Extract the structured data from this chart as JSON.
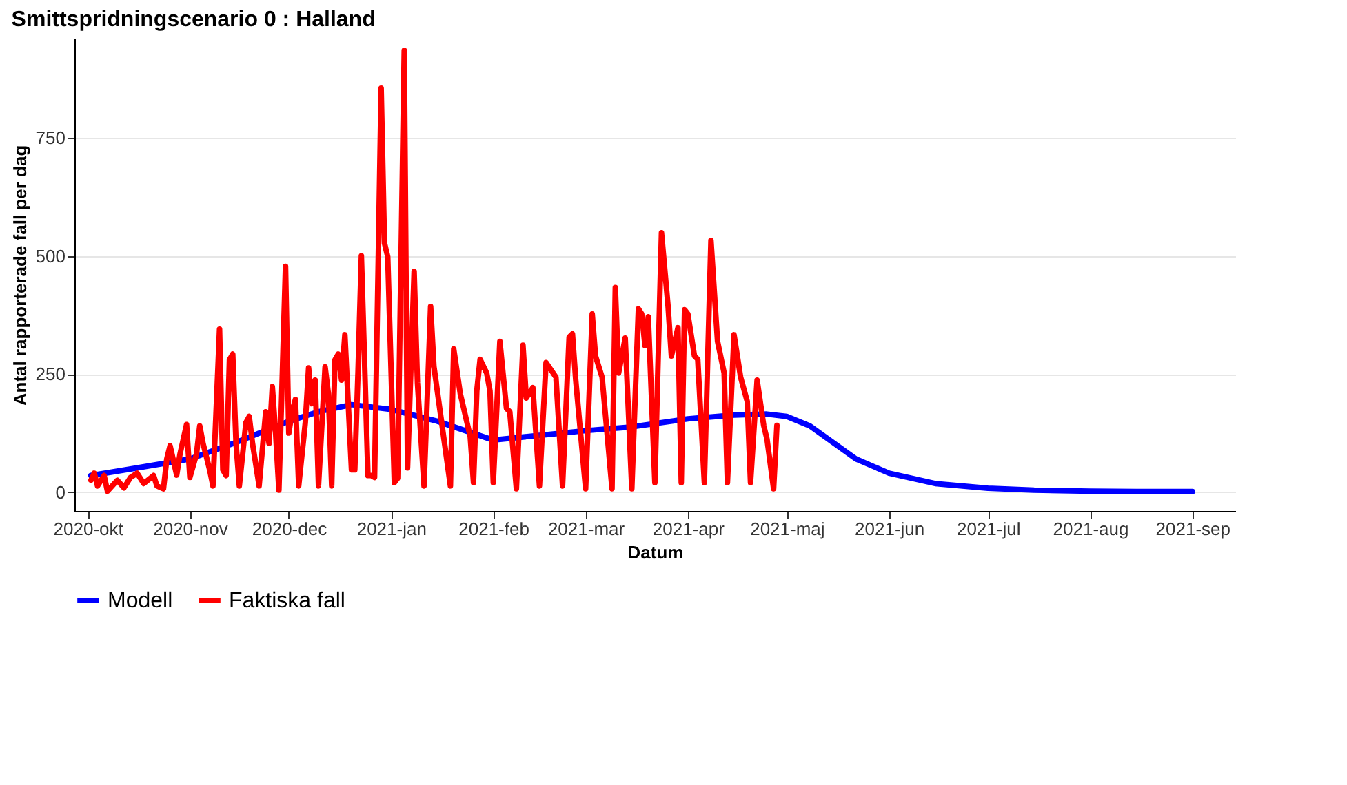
{
  "chart_data": {
    "type": "line",
    "title": "Smittspridningscenario  0 :  Halland",
    "xlabel": "Datum",
    "ylabel": "Antal rapporterade fall per dag",
    "xlim": [
      "2020-09-27",
      "2021-09-14"
    ],
    "ylim": [
      -40,
      960
    ],
    "yticks": [
      0,
      250,
      500,
      750
    ],
    "xticks": [
      {
        "value": "2020-10-01",
        "label": "2020-okt"
      },
      {
        "value": "2020-11-01",
        "label": "2020-nov"
      },
      {
        "value": "2020-12-01",
        "label": "2020-dec"
      },
      {
        "value": "2021-01-01",
        "label": "2021-jan"
      },
      {
        "value": "2021-02-01",
        "label": "2021-feb"
      },
      {
        "value": "2021-03-01",
        "label": "2021-mar"
      },
      {
        "value": "2021-04-01",
        "label": "2021-apr"
      },
      {
        "value": "2021-05-01",
        "label": "2021-maj"
      },
      {
        "value": "2021-06-01",
        "label": "2021-jun"
      },
      {
        "value": "2021-07-01",
        "label": "2021-jul"
      },
      {
        "value": "2021-08-01",
        "label": "2021-aug"
      },
      {
        "value": "2021-09-01",
        "label": "2021-sep"
      }
    ],
    "grid": "y",
    "legend": "bottom",
    "line_style": "solid",
    "series": [
      {
        "name": "Modell",
        "color": "#0000ff",
        "x": [
          "2020-10-02",
          "2020-10-15",
          "2020-11-01",
          "2020-11-15",
          "2020-12-01",
          "2020-12-10",
          "2020-12-20",
          "2021-01-01",
          "2021-01-15",
          "2021-02-01",
          "2021-02-15",
          "2021-03-01",
          "2021-03-15",
          "2021-04-01",
          "2021-04-15",
          "2021-04-25",
          "2021-05-01",
          "2021-05-08",
          "2021-05-15",
          "2021-05-22",
          "2021-06-01",
          "2021-06-15",
          "2021-07-01",
          "2021-07-15",
          "2021-08-01",
          "2021-08-15",
          "2021-09-01"
        ],
        "values": [
          35,
          50,
          70,
          105,
          150,
          170,
          185,
          175,
          150,
          110,
          120,
          130,
          138,
          155,
          163,
          165,
          160,
          140,
          105,
          70,
          40,
          18,
          8,
          4,
          2,
          1,
          1
        ]
      },
      {
        "name": "Faktiska fall",
        "color": "#ff0000",
        "x": [
          "2020-10-02",
          "2020-10-03",
          "2020-10-04",
          "2020-10-06",
          "2020-10-07",
          "2020-10-10",
          "2020-10-12",
          "2020-10-14",
          "2020-10-16",
          "2020-10-18",
          "2020-10-21",
          "2020-10-22",
          "2020-10-24",
          "2020-10-25",
          "2020-10-26",
          "2020-10-28",
          "2020-10-29",
          "2020-10-31",
          "2020-11-01",
          "2020-11-03",
          "2020-11-04",
          "2020-11-05",
          "2020-11-07",
          "2020-11-08",
          "2020-11-10",
          "2020-11-11",
          "2020-11-12",
          "2020-11-13",
          "2020-11-14",
          "2020-11-15",
          "2020-11-16",
          "2020-11-18",
          "2020-11-19",
          "2020-11-20",
          "2020-11-22",
          "2020-11-24",
          "2020-11-25",
          "2020-11-26",
          "2020-11-27",
          "2020-11-28",
          "2020-11-30",
          "2020-12-01",
          "2020-12-02",
          "2020-12-03",
          "2020-12-04",
          "2020-12-06",
          "2020-12-07",
          "2020-12-08",
          "2020-12-09",
          "2020-12-10",
          "2020-12-12",
          "2020-12-13",
          "2020-12-14",
          "2020-12-15",
          "2020-12-16",
          "2020-12-17",
          "2020-12-18",
          "2020-12-20",
          "2020-12-21",
          "2020-12-22",
          "2020-12-23",
          "2020-12-25",
          "2020-12-26",
          "2020-12-27",
          "2020-12-29",
          "2020-12-30",
          "2020-12-31",
          "2021-01-02",
          "2021-01-03",
          "2021-01-05",
          "2021-01-06",
          "2021-01-08",
          "2021-01-09",
          "2021-01-11",
          "2021-01-13",
          "2021-01-14",
          "2021-01-19",
          "2021-01-20",
          "2021-01-22",
          "2021-01-25",
          "2021-01-26",
          "2021-01-27",
          "2021-01-28",
          "2021-01-30",
          "2021-01-31",
          "2021-02-01",
          "2021-02-03",
          "2021-02-05",
          "2021-02-06",
          "2021-02-08",
          "2021-02-10",
          "2021-02-11",
          "2021-02-13",
          "2021-02-15",
          "2021-02-17",
          "2021-02-20",
          "2021-02-22",
          "2021-02-24",
          "2021-02-25",
          "2021-02-26",
          "2021-03-01",
          "2021-03-03",
          "2021-03-04",
          "2021-03-06",
          "2021-03-09",
          "2021-03-10",
          "2021-03-11",
          "2021-03-13",
          "2021-03-15",
          "2021-03-17",
          "2021-03-18",
          "2021-03-19",
          "2021-03-20",
          "2021-03-22",
          "2021-03-24",
          "2021-03-26",
          "2021-03-27",
          "2021-03-29",
          "2021-03-30",
          "2021-03-31",
          "2021-04-01",
          "2021-04-03",
          "2021-04-04",
          "2021-04-06",
          "2021-04-08",
          "2021-04-10",
          "2021-04-12",
          "2021-04-13",
          "2021-04-15",
          "2021-04-17",
          "2021-04-19",
          "2021-04-20",
          "2021-04-22",
          "2021-04-24",
          "2021-04-25",
          "2021-04-27",
          "2021-04-28"
        ],
        "values": [
          25,
          40,
          13,
          35,
          2,
          25,
          9,
          31,
          40,
          18,
          35,
          13,
          7,
          70,
          98,
          36,
          80,
          143,
          31,
          80,
          140,
          103,
          47,
          13,
          345,
          47,
          35,
          280,
          292,
          103,
          13,
          147,
          160,
          103,
          13,
          170,
          103,
          223,
          125,
          4,
          478,
          125,
          170,
          196,
          13,
          147,
          263,
          187,
          237,
          13,
          265,
          208,
          13,
          280,
          292,
          237,
          333,
          47,
          47,
          258,
          500,
          35,
          35,
          31,
          855,
          527,
          498,
          20,
          29,
          935,
          51,
          467,
          232,
          13,
          393,
          266,
          13,
          303,
          208,
          118,
          20,
          214,
          281,
          252,
          214,
          20,
          319,
          177,
          170,
          7,
          311,
          199,
          221,
          13,
          274,
          243,
          13,
          328,
          335,
          237,
          7,
          377,
          288,
          243,
          7,
          433,
          252,
          326,
          7,
          388,
          377,
          310,
          371,
          20,
          549,
          393,
          288,
          348,
          20,
          386,
          377,
          288,
          281,
          20,
          533,
          319,
          252,
          20,
          333,
          243,
          192,
          20,
          237,
          141,
          112,
          7,
          141
        ]
      }
    ]
  }
}
